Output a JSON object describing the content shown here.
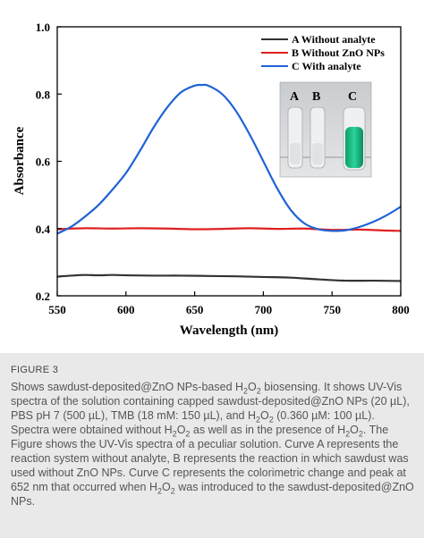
{
  "chart_data": {
    "type": "line",
    "title": "",
    "xlabel": "Wavelength (nm)",
    "ylabel": "Absorbance",
    "xlim": [
      550,
      800
    ],
    "ylim": [
      0.2,
      1.0
    ],
    "xticks": [
      "550",
      "600",
      "650",
      "700",
      "750",
      "800"
    ],
    "yticks": [
      "0.2",
      "0.4",
      "0.6",
      "0.8",
      "1.0"
    ],
    "grid": false,
    "legend": "top-right",
    "series": [
      {
        "name": "A Without analyte",
        "color": "#333333",
        "x": [
          550,
          560,
          570,
          580,
          590,
          600,
          620,
          640,
          660,
          680,
          700,
          720,
          740,
          760,
          780,
          800
        ],
        "y": [
          0.257,
          0.26,
          0.262,
          0.261,
          0.262,
          0.261,
          0.26,
          0.26,
          0.259,
          0.258,
          0.256,
          0.254,
          0.249,
          0.245,
          0.245,
          0.244
        ]
      },
      {
        "name": "B Without ZnO NPs",
        "color": "#e02020",
        "x": [
          550,
          570,
          590,
          610,
          630,
          650,
          670,
          690,
          710,
          730,
          750,
          770,
          790,
          800
        ],
        "y": [
          0.398,
          0.401,
          0.4,
          0.401,
          0.4,
          0.398,
          0.399,
          0.401,
          0.399,
          0.4,
          0.396,
          0.397,
          0.394,
          0.393
        ]
      },
      {
        "name": "C With analyte",
        "color": "#1f63d6",
        "x": [
          550,
          560,
          570,
          580,
          590,
          600,
          610,
          620,
          630,
          640,
          650,
          655,
          660,
          670,
          680,
          690,
          700,
          710,
          720,
          730,
          740,
          750,
          760,
          770,
          780,
          790,
          800
        ],
        "y": [
          0.385,
          0.405,
          0.435,
          0.47,
          0.515,
          0.565,
          0.63,
          0.7,
          0.76,
          0.805,
          0.825,
          0.827,
          0.825,
          0.8,
          0.75,
          0.68,
          0.6,
          0.52,
          0.455,
          0.415,
          0.398,
          0.393,
          0.395,
          0.405,
          0.42,
          0.44,
          0.465
        ]
      }
    ]
  },
  "inset": {
    "labels": [
      "A",
      "B",
      "C"
    ]
  },
  "figure_label": "FIGURE 3",
  "caption_html": "Shows sawdust-deposited@ZnO NPs-based H<sub>2</sub>O<sub>2</sub> biosensing. It shows UV-Vis spectra of the solution containing capped sawdust-deposited@ZnO NPs (20 µL), PBS pH 7 (500 µL), TMB (18 mM: 150 µL), and H<sub>2</sub>O<sub>2</sub> (0.360 µM: 100 µL). Spectra were obtained without H<sub>2</sub>O<sub>2</sub> as well as in the presence of H<sub>2</sub>O<sub>2</sub>. The Figure shows the UV-Vis spectra of a peculiar solution. Curve A represents the reaction system without analyte, B represents the reaction in which sawdust was used without ZnO NPs. Curve C represents the colorimetric change and peak at 652 nm that occurred when H<sub>2</sub>O<sub>2</sub> was introduced to the sawdust-deposited@ZnO NPs."
}
